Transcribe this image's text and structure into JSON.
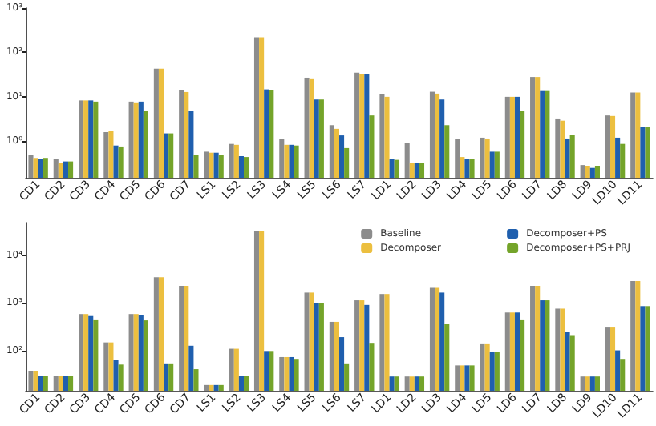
{
  "chart_data": [
    {
      "type": "bar",
      "categories": [
        "CD1",
        "CD2",
        "CD3",
        "CD4",
        "CD5",
        "CD6",
        "CD7",
        "LS1",
        "LS2",
        "LS3",
        "LS4",
        "LS5",
        "LS6",
        "LS7",
        "LD1",
        "LD2",
        "LD3",
        "LD4",
        "LD5",
        "LD6",
        "LD7",
        "LD8",
        "LD9",
        "LD10",
        "LD11"
      ],
      "series": [
        {
          "color": "#8c8c8c",
          "values": [
            0.5,
            0.4,
            8.3,
            1.6,
            7.8,
            43,
            14,
            0.58,
            0.87,
            220,
            1.1,
            27,
            2.3,
            35,
            11.5,
            0.92,
            13,
            1.1,
            1.2,
            10,
            28,
            3.25,
            0.29,
            3.8,
            12.5
          ]
        },
        {
          "color": "#ecbf3f",
          "values": [
            0.42,
            0.32,
            8.3,
            1.7,
            7.2,
            43,
            12.8,
            0.55,
            0.83,
            220,
            0.83,
            25,
            1.9,
            33,
            10,
            0.33,
            11.8,
            0.44,
            1.15,
            10,
            28,
            2.9,
            0.28,
            3.7,
            12.5
          ]
        },
        {
          "color": "#1f5fae",
          "values": [
            0.4,
            0.35,
            8.3,
            0.8,
            7.8,
            1.5,
            4.9,
            0.55,
            0.46,
            14.7,
            0.83,
            8.7,
            1.35,
            32,
            0.4,
            0.33,
            8.7,
            0.4,
            0.58,
            10,
            13.5,
            1.15,
            0.25,
            1.2,
            2.1
          ]
        },
        {
          "color": "#74a42a",
          "values": [
            0.42,
            0.35,
            7.8,
            0.76,
            4.9,
            1.5,
            0.5,
            0.5,
            0.44,
            14,
            0.8,
            8.7,
            0.7,
            3.8,
            0.38,
            0.33,
            2.3,
            0.4,
            0.58,
            4.9,
            13.5,
            1.4,
            0.28,
            0.87,
            2.1
          ]
        }
      ],
      "log": "y",
      "ylim": [
        0.15,
        1000
      ],
      "yticks": [
        {
          "value": 1,
          "label": "10⁰"
        },
        {
          "value": 10,
          "label": "10¹"
        },
        {
          "value": 100,
          "label": "10²"
        },
        {
          "value": 1000,
          "label": "10³"
        }
      ],
      "grid": false,
      "legend": false
    },
    {
      "type": "bar",
      "categories": [
        "CD1",
        "CD2",
        "CD3",
        "CD4",
        "CD5",
        "CD6",
        "CD7",
        "LS1",
        "LS2",
        "LS3",
        "LS4",
        "LS5",
        "LS6",
        "LS7",
        "LD1",
        "LD2",
        "LD3",
        "LD4",
        "LD5",
        "LD6",
        "LD7",
        "LD8",
        "LD9",
        "LD10",
        "LD11"
      ],
      "series": [
        {
          "name": "Baseline",
          "color": "#8c8c8c",
          "values": [
            37,
            29,
            585,
            147,
            585,
            3500,
            2300,
            18.5,
            108,
            33000,
            72,
            1660,
            400,
            1140,
            1550,
            28,
            2100,
            48,
            140,
            630,
            2300,
            760,
            28,
            315,
            2900
          ]
        },
        {
          "name": "Decomposer",
          "color": "#ecbf3f",
          "values": [
            37,
            29,
            585,
            147,
            585,
            3500,
            2300,
            18.5,
            108,
            33000,
            72,
            1660,
            400,
            1140,
            1550,
            28,
            2100,
            48,
            140,
            630,
            2300,
            760,
            28,
            315,
            2900
          ]
        },
        {
          "name": "Decomposer+PS",
          "color": "#1f5fae",
          "values": [
            29,
            29,
            530,
            63,
            555,
            53,
            125,
            18.5,
            29,
            97,
            72,
            1000,
            190,
            910,
            28,
            28,
            1660,
            48,
            93,
            630,
            1140,
            250,
            28,
            100,
            860
          ]
        },
        {
          "name": "Decomposer+PS+PRJ",
          "color": "#74a42a",
          "values": [
            29,
            29,
            450,
            50,
            430,
            53,
            40,
            18.5,
            29,
            97,
            66,
            1000,
            53,
            144,
            28,
            28,
            360,
            48,
            93,
            450,
            1140,
            210,
            28,
            66,
            860
          ]
        }
      ],
      "log": "y",
      "ylim": [
        14,
        50000
      ],
      "yticks": [
        {
          "value": 100,
          "label": "10²"
        },
        {
          "value": 1000,
          "label": "10³"
        },
        {
          "value": 10000,
          "label": "10⁴"
        }
      ],
      "grid": false,
      "legend": "top right"
    }
  ]
}
